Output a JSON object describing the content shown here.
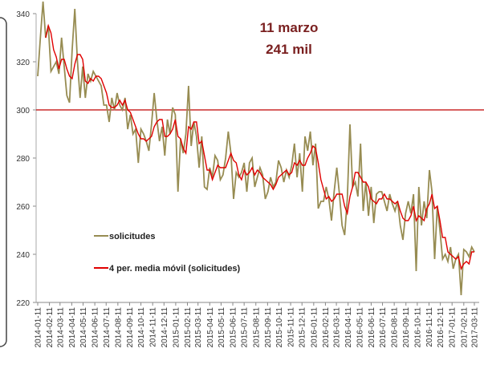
{
  "chart_data": {
    "type": "line",
    "annotations": [
      "11 marzo",
      "241 mil"
    ],
    "x": [
      "2014-01-11",
      "2014-01-18",
      "2014-01-25",
      "2014-02-01",
      "2014-02-08",
      "2014-02-15",
      "2014-02-22",
      "2014-03-01",
      "2014-03-08",
      "2014-03-15",
      "2014-03-22",
      "2014-03-29",
      "2014-04-05",
      "2014-04-12",
      "2014-04-19",
      "2014-04-26",
      "2014-05-03",
      "2014-05-10",
      "2014-05-17",
      "2014-05-24",
      "2014-05-31",
      "2014-06-07",
      "2014-06-14",
      "2014-06-21",
      "2014-06-28",
      "2014-07-05",
      "2014-07-12",
      "2014-07-19",
      "2014-07-26",
      "2014-08-02",
      "2014-08-09",
      "2014-08-16",
      "2014-08-23",
      "2014-08-30",
      "2014-09-06",
      "2014-09-13",
      "2014-09-20",
      "2014-09-27",
      "2014-10-04",
      "2014-10-11",
      "2014-10-18",
      "2014-10-25",
      "2014-11-01",
      "2014-11-08",
      "2014-11-15",
      "2014-11-22",
      "2014-11-29",
      "2014-12-06",
      "2014-12-13",
      "2014-12-20",
      "2014-12-27",
      "2015-01-03",
      "2015-01-10",
      "2015-01-17",
      "2015-01-24",
      "2015-01-31",
      "2015-02-07",
      "2015-02-14",
      "2015-02-21",
      "2015-02-28",
      "2015-03-07",
      "2015-03-14",
      "2015-03-21",
      "2015-03-28",
      "2015-04-04",
      "2015-04-11",
      "2015-04-18",
      "2015-04-25",
      "2015-05-02",
      "2015-05-09",
      "2015-05-16",
      "2015-05-23",
      "2015-05-30",
      "2015-06-06",
      "2015-06-13",
      "2015-06-20",
      "2015-06-27",
      "2015-07-04",
      "2015-07-11",
      "2015-07-18",
      "2015-07-25",
      "2015-08-01",
      "2015-08-08",
      "2015-08-15",
      "2015-08-22",
      "2015-08-29",
      "2015-09-05",
      "2015-09-12",
      "2015-09-19",
      "2015-09-26",
      "2015-10-03",
      "2015-10-10",
      "2015-10-17",
      "2015-10-24",
      "2015-10-31",
      "2015-11-07",
      "2015-11-14",
      "2015-11-21",
      "2015-11-28",
      "2015-12-05",
      "2015-12-12",
      "2015-12-19",
      "2015-12-26",
      "2016-01-02",
      "2016-01-09",
      "2016-01-16",
      "2016-01-23",
      "2016-01-30",
      "2016-02-06",
      "2016-02-13",
      "2016-02-20",
      "2016-02-27",
      "2016-03-05",
      "2016-03-12",
      "2016-03-19",
      "2016-03-26",
      "2016-04-02",
      "2016-04-09",
      "2016-04-16",
      "2016-04-23",
      "2016-04-30",
      "2016-05-07",
      "2016-05-14",
      "2016-05-21",
      "2016-05-28",
      "2016-06-04",
      "2016-06-11",
      "2016-06-18",
      "2016-06-25",
      "2016-07-02",
      "2016-07-09",
      "2016-07-16",
      "2016-07-23",
      "2016-07-30",
      "2016-08-06",
      "2016-08-13",
      "2016-08-20",
      "2016-08-27",
      "2016-09-03",
      "2016-09-10",
      "2016-09-17",
      "2016-09-24",
      "2016-10-01",
      "2016-10-08",
      "2016-10-15",
      "2016-10-22",
      "2016-10-29",
      "2016-11-05",
      "2016-11-12",
      "2016-11-19",
      "2016-11-26",
      "2016-12-03",
      "2016-12-10",
      "2016-12-17",
      "2016-12-24",
      "2016-12-31",
      "2017-01-07",
      "2017-01-14",
      "2017-01-21",
      "2017-01-28",
      "2017-02-04",
      "2017-02-11",
      "2017-02-18",
      "2017-02-25",
      "2017-03-04",
      "2017-03-11"
    ],
    "series": [
      {
        "name": "solicitudes",
        "color": "#978c52",
        "values": [
          314,
          330,
          345,
          330,
          335,
          316,
          318,
          320,
          315,
          330,
          318,
          306,
          303,
          325,
          342,
          320,
          305,
          318,
          305,
          315,
          312,
          316,
          314,
          312,
          310,
          302,
          302,
          295,
          305,
          300,
          307,
          302,
          300,
          305,
          292,
          298,
          290,
          292,
          278,
          292,
          290,
          287,
          283,
          294,
          307,
          296,
          287,
          293,
          281,
          296,
          290,
          301,
          298,
          266,
          288,
          282,
          290,
          310,
          285,
          295,
          289,
          276,
          289,
          268,
          267,
          276,
          272,
          281,
          279,
          271,
          273,
          280,
          291,
          282,
          263,
          274,
          272,
          274,
          278,
          266,
          278,
          280,
          268,
          272,
          276,
          273,
          263,
          266,
          272,
          268,
          270,
          279,
          276,
          270,
          275,
          272,
          277,
          286,
          272,
          282,
          266,
          289,
          283,
          291,
          277,
          286,
          259,
          262,
          262,
          268,
          263,
          254,
          266,
          276,
          265,
          252,
          248,
          263,
          294,
          268,
          270,
          264,
          286,
          258,
          270,
          256,
          268,
          253,
          265,
          266,
          266,
          262,
          258,
          265,
          261,
          258,
          262,
          252,
          246,
          257,
          262,
          257,
          265,
          233,
          268,
          252,
          262,
          255,
          275,
          266,
          238,
          260,
          250,
          238,
          240,
          237,
          243,
          234,
          238,
          240,
          223,
          242,
          241,
          239,
          243,
          241
        ]
      },
      {
        "name": "4 per. media móvil (solicitudes)",
        "color": "#e00000",
        "values": [
          null,
          null,
          null,
          330,
          335,
          332,
          325,
          322,
          317,
          321,
          321,
          317,
          314,
          313,
          319,
          323,
          323,
          321,
          312,
          311,
          313,
          312,
          314,
          314,
          313,
          310,
          307,
          302,
          301,
          301,
          302,
          304,
          302,
          304,
          300,
          299,
          296,
          293,
          290,
          288,
          288,
          287,
          288,
          289,
          293,
          295,
          296,
          296,
          289,
          289,
          290,
          292,
          296,
          289,
          288,
          284,
          282,
          293,
          292,
          295,
          295,
          286,
          287,
          281,
          275,
          275,
          271,
          274,
          277,
          276,
          276,
          276,
          279,
          282,
          279,
          278,
          273,
          271,
          275,
          273,
          274,
          276,
          273,
          275,
          274,
          272,
          271,
          270,
          269,
          267,
          269,
          272,
          273,
          274,
          275,
          273,
          274,
          278,
          277,
          279,
          277,
          277,
          280,
          282,
          285,
          284,
          278,
          271,
          267,
          263,
          264,
          262,
          263,
          265,
          265,
          265,
          260,
          257,
          264,
          268,
          274,
          274,
          272,
          270,
          270,
          268,
          263,
          262,
          261,
          263,
          263,
          265,
          263,
          263,
          262,
          261,
          262,
          258,
          255,
          254,
          254,
          256,
          260,
          254,
          256,
          255,
          254,
          259,
          261,
          265,
          259,
          260,
          254,
          247,
          247,
          241,
          240,
          239,
          238,
          239,
          234,
          236,
          237,
          236,
          241,
          241
        ]
      }
    ],
    "hline": 300,
    "xlim": [
      "2014-01-11",
      "2017-03-11"
    ],
    "xticks": [
      "2014-01-11",
      "2014-02-11",
      "2014-03-11",
      "2014-04-11",
      "2014-05-11",
      "2014-06-11",
      "2014-07-11",
      "2014-08-11",
      "2014-09-11",
      "2014-10-11",
      "2014-11-11",
      "2014-12-11",
      "2015-01-11",
      "2015-02-11",
      "2015-03-11",
      "2015-04-11",
      "2015-05-11",
      "2015-06-11",
      "2015-07-11",
      "2015-08-11",
      "2015-09-11",
      "2015-10-11",
      "2015-11-11",
      "2015-12-11",
      "2016-01-11",
      "2016-02-11",
      "2016-03-11",
      "2016-04-11",
      "2016-05-11",
      "2016-06-11",
      "2016-07-11",
      "2016-08-11",
      "2016-09-11",
      "2016-10-11",
      "2016-11-11",
      "2016-12-11",
      "2017-01-11",
      "2017-02-11",
      "2017-03-11"
    ],
    "ylim": [
      220,
      340
    ],
    "yticks": [
      220,
      240,
      260,
      280,
      300,
      320,
      340
    ]
  }
}
